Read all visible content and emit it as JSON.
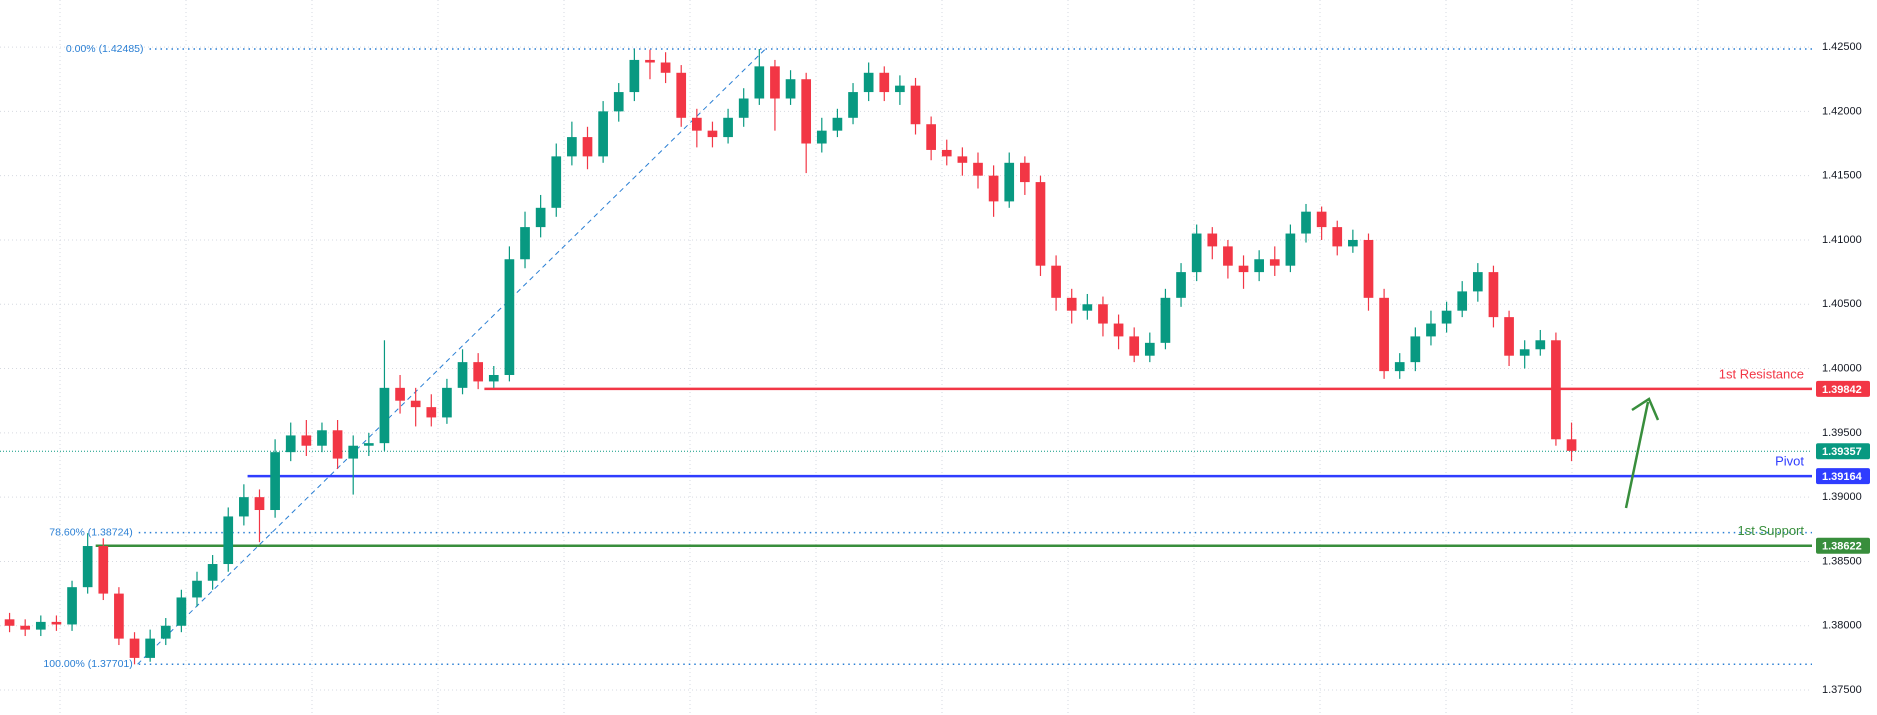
{
  "chart_data": {
    "type": "candlestick",
    "ylim": [
      1.37306,
      1.42866
    ],
    "yticks": [
      {
        "value": 1.375,
        "label": "1.37500"
      },
      {
        "value": 1.38,
        "label": "1.38000"
      },
      {
        "value": 1.385,
        "label": "1.38500"
      },
      {
        "value": 1.39,
        "label": "1.39000"
      },
      {
        "value": 1.395,
        "label": "1.39500"
      },
      {
        "value": 1.4,
        "label": "1.40000"
      },
      {
        "value": 1.405,
        "label": "1.40500"
      },
      {
        "value": 1.41,
        "label": "1.41000"
      },
      {
        "value": 1.415,
        "label": "1.41500"
      },
      {
        "value": 1.42,
        "label": "1.42000"
      },
      {
        "value": 1.425,
        "label": "1.42500"
      }
    ],
    "grid": true,
    "up_color": "#089981",
    "down_color": "#f23645",
    "ohlc": {
      "open": [
        1.3805,
        1.38,
        1.3797,
        1.3803,
        1.3801,
        1.383,
        1.3862,
        1.3825,
        1.379,
        1.3775,
        1.379,
        1.38,
        1.3822,
        1.3835,
        1.3848,
        1.3885,
        1.39,
        1.389,
        1.3935,
        1.3948,
        1.394,
        1.3952,
        1.393,
        1.394,
        1.3942,
        1.3985,
        1.3975,
        1.397,
        1.3962,
        1.3985,
        1.4005,
        1.399,
        1.3995,
        1.4085,
        1.411,
        1.4125,
        1.4165,
        1.418,
        1.4165,
        1.42,
        1.4215,
        1.424,
        1.4238,
        1.423,
        1.4195,
        1.4185,
        1.418,
        1.4195,
        1.421,
        1.4235,
        1.421,
        1.4225,
        1.4175,
        1.4185,
        1.4195,
        1.4215,
        1.423,
        1.4215,
        1.422,
        1.419,
        1.417,
        1.4165,
        1.416,
        1.415,
        1.413,
        1.416,
        1.4145,
        1.408,
        1.4055,
        1.4045,
        1.405,
        1.4035,
        1.4025,
        1.401,
        1.402,
        1.4055,
        1.4075,
        1.4105,
        1.4095,
        1.408,
        1.4075,
        1.4085,
        1.408,
        1.4105,
        1.4122,
        1.411,
        1.4095,
        1.41,
        1.4055,
        1.3998,
        1.4005,
        1.4025,
        1.4035,
        1.4045,
        1.406,
        1.4075,
        1.404,
        1.401,
        1.4015,
        1.4022,
        1.3945
      ],
      "high": [
        1.381,
        1.3805,
        1.3808,
        1.3808,
        1.3835,
        1.3872,
        1.3868,
        1.383,
        1.3795,
        1.3797,
        1.3806,
        1.3828,
        1.3842,
        1.3855,
        1.3892,
        1.391,
        1.3906,
        1.3945,
        1.3958,
        1.396,
        1.3958,
        1.396,
        1.3948,
        1.395,
        1.4022,
        1.3995,
        1.3985,
        1.398,
        1.3992,
        1.4015,
        1.4012,
        1.4002,
        1.4095,
        1.4122,
        1.4135,
        1.4175,
        1.4192,
        1.4188,
        1.4208,
        1.4222,
        1.42485,
        1.4248,
        1.4246,
        1.4236,
        1.4202,
        1.4192,
        1.4202,
        1.4218,
        1.42485,
        1.424,
        1.4232,
        1.423,
        1.4195,
        1.4202,
        1.4222,
        1.4238,
        1.4235,
        1.4228,
        1.4226,
        1.4196,
        1.4178,
        1.4172,
        1.4168,
        1.4158,
        1.4168,
        1.4165,
        1.415,
        1.4088,
        1.4062,
        1.4058,
        1.4056,
        1.4042,
        1.4032,
        1.4028,
        1.4062,
        1.4082,
        1.4112,
        1.411,
        1.41,
        1.4088,
        1.4092,
        1.4095,
        1.4112,
        1.4128,
        1.4126,
        1.4115,
        1.4108,
        1.4105,
        1.4062,
        1.4012,
        1.4032,
        1.4045,
        1.4052,
        1.4068,
        1.4082,
        1.408,
        1.4045,
        1.4022,
        1.403,
        1.4028,
        1.3958
      ],
      "low": [
        1.3795,
        1.3792,
        1.3792,
        1.3796,
        1.3796,
        1.3825,
        1.382,
        1.3785,
        1.377,
        1.3772,
        1.3785,
        1.3795,
        1.3815,
        1.3828,
        1.3842,
        1.3878,
        1.3865,
        1.3884,
        1.3928,
        1.3932,
        1.3935,
        1.3922,
        1.3902,
        1.3932,
        1.3936,
        1.3965,
        1.3955,
        1.3955,
        1.3957,
        1.398,
        1.3984,
        1.3985,
        1.399,
        1.4078,
        1.4102,
        1.4118,
        1.4158,
        1.4155,
        1.416,
        1.4192,
        1.4208,
        1.4225,
        1.4222,
        1.4188,
        1.4172,
        1.4172,
        1.4175,
        1.4188,
        1.4205,
        1.4185,
        1.4205,
        1.4152,
        1.4168,
        1.418,
        1.419,
        1.4208,
        1.4208,
        1.4205,
        1.4182,
        1.4162,
        1.4158,
        1.415,
        1.414,
        1.4118,
        1.4125,
        1.4135,
        1.4072,
        1.4045,
        1.4035,
        1.4038,
        1.4025,
        1.4015,
        1.4005,
        1.4005,
        1.4015,
        1.4048,
        1.4068,
        1.4085,
        1.407,
        1.4062,
        1.4068,
        1.4072,
        1.4075,
        1.4098,
        1.41,
        1.4088,
        1.409,
        1.4045,
        1.3992,
        1.3992,
        1.3998,
        1.4018,
        1.4028,
        1.404,
        1.4052,
        1.4032,
        1.4002,
        1.4,
        1.401,
        1.394,
        1.3928
      ],
      "close": [
        1.38,
        1.3797,
        1.3803,
        1.3801,
        1.383,
        1.3862,
        1.3825,
        1.379,
        1.3775,
        1.379,
        1.38,
        1.3822,
        1.3835,
        1.3848,
        1.3885,
        1.39,
        1.389,
        1.3935,
        1.3948,
        1.394,
        1.3952,
        1.393,
        1.394,
        1.3942,
        1.3985,
        1.3975,
        1.397,
        1.3962,
        1.3985,
        1.4005,
        1.399,
        1.3995,
        1.4085,
        1.411,
        1.4125,
        1.4165,
        1.418,
        1.4165,
        1.42,
        1.4215,
        1.424,
        1.4238,
        1.423,
        1.4195,
        1.4185,
        1.418,
        1.4195,
        1.421,
        1.4235,
        1.421,
        1.4225,
        1.4175,
        1.4185,
        1.4195,
        1.4215,
        1.423,
        1.4215,
        1.422,
        1.419,
        1.417,
        1.4165,
        1.416,
        1.415,
        1.413,
        1.416,
        1.4145,
        1.408,
        1.4055,
        1.4045,
        1.405,
        1.4035,
        1.4025,
        1.401,
        1.402,
        1.4055,
        1.4075,
        1.4105,
        1.4095,
        1.408,
        1.4075,
        1.4085,
        1.408,
        1.4105,
        1.4122,
        1.411,
        1.4095,
        1.41,
        1.4055,
        1.3998,
        1.4005,
        1.4025,
        1.4035,
        1.4045,
        1.406,
        1.4075,
        1.404,
        1.401,
        1.4015,
        1.4022,
        1.3945,
        1.3936
      ]
    },
    "last_price": {
      "value": 1.39357,
      "color": "#089981"
    },
    "levels": [
      {
        "name": "1st Resistance",
        "value": 1.39842,
        "color": "#f23645"
      },
      {
        "name": "Pivot",
        "value": 1.39164,
        "color": "#2f3dff"
      },
      {
        "name": "1st Support",
        "value": 1.38622,
        "color": "#388e3c"
      }
    ],
    "fib_color": "#2a7fd4",
    "fib_levels": [
      {
        "label": "0.00% (1.42485)",
        "value": 1.42485
      },
      {
        "label": "78.60% (1.38724)",
        "value": 1.38724
      },
      {
        "label": "100.00% (1.37701)",
        "value": 1.37701
      }
    ]
  }
}
